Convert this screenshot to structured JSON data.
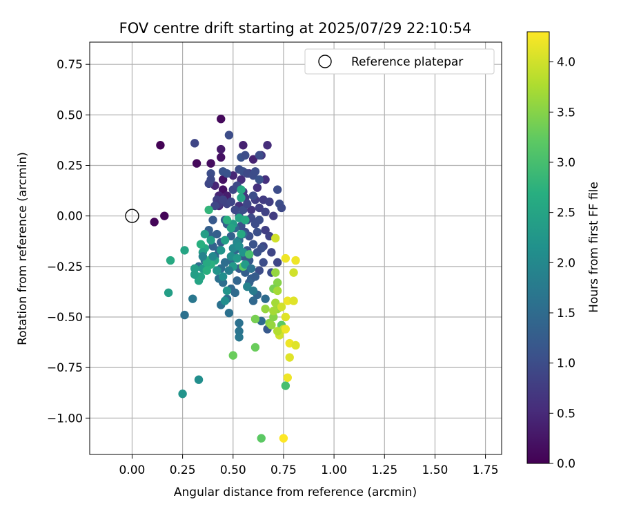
{
  "chart_data": {
    "type": "scatter",
    "title": "FOV centre drift starting at 2025/07/29 22:10:54",
    "xlabel": "Angular distance from reference (arcmin)",
    "ylabel": "Rotation from reference (arcmin)",
    "xlim": [
      -0.21,
      1.83
    ],
    "ylim": [
      -1.18,
      0.86
    ],
    "xticks": [
      "0.00",
      "0.25",
      "0.50",
      "0.75",
      "1.00",
      "1.25",
      "1.50",
      "1.75"
    ],
    "yticks": [
      "0.75",
      "0.50",
      "0.25",
      "0.00",
      "−0.25",
      "−0.50",
      "−0.75",
      "−1.00"
    ],
    "grid": true,
    "legend": {
      "position": "top-right",
      "label": "Reference platepar"
    },
    "reference_point": {
      "x": 0.0,
      "y": 0.0
    },
    "colorbar": {
      "label": "Hours from first FF file",
      "range": [
        0.0,
        4.3
      ],
      "ticks": [
        "0.0",
        "0.5",
        "1.0",
        "1.5",
        "2.0",
        "2.5",
        "3.0",
        "3.5",
        "4.0"
      ],
      "colormap": "viridis"
    },
    "points": [
      [
        0.14,
        0.35,
        0.02
      ],
      [
        0.11,
        -0.03,
        0.05
      ],
      [
        0.16,
        0.0,
        0.05
      ],
      [
        0.44,
        0.48,
        0.1
      ],
      [
        0.32,
        0.26,
        0.1
      ],
      [
        0.39,
        0.26,
        0.15
      ],
      [
        0.44,
        0.29,
        0.2
      ],
      [
        0.44,
        0.33,
        0.3
      ],
      [
        0.45,
        0.18,
        0.2
      ],
      [
        0.45,
        0.13,
        0.2
      ],
      [
        0.47,
        0.1,
        0.35
      ],
      [
        0.41,
        0.15,
        0.45
      ],
      [
        0.43,
        0.1,
        0.45
      ],
      [
        0.43,
        0.05,
        0.5
      ],
      [
        0.55,
        0.35,
        0.4
      ],
      [
        0.6,
        0.28,
        0.4
      ],
      [
        0.5,
        0.2,
        0.45
      ],
      [
        0.54,
        0.18,
        0.55
      ],
      [
        0.58,
        0.21,
        0.6
      ],
      [
        0.62,
        0.14,
        0.6
      ],
      [
        0.66,
        0.18,
        0.6
      ],
      [
        0.67,
        0.35,
        0.55
      ],
      [
        0.64,
        0.3,
        0.7
      ],
      [
        0.55,
        0.12,
        0.7
      ],
      [
        0.56,
        0.09,
        0.7
      ],
      [
        0.53,
        0.05,
        0.6
      ],
      [
        0.59,
        0.03,
        0.65
      ],
      [
        0.61,
        0.08,
        0.75
      ],
      [
        0.65,
        0.08,
        0.75
      ],
      [
        0.68,
        0.07,
        0.8
      ],
      [
        0.63,
        0.04,
        0.8
      ],
      [
        0.66,
        0.02,
        0.85
      ],
      [
        0.7,
        0.0,
        0.75
      ],
      [
        0.66,
        -0.07,
        0.8
      ],
      [
        0.68,
        -0.1,
        0.85
      ],
      [
        0.65,
        -0.15,
        0.9
      ],
      [
        0.69,
        -0.18,
        0.9
      ],
      [
        0.72,
        -0.23,
        0.9
      ],
      [
        0.65,
        -0.23,
        1.0
      ],
      [
        0.63,
        -0.27,
        1.0
      ],
      [
        0.69,
        -0.28,
        1.0
      ],
      [
        0.31,
        0.36,
        0.9
      ],
      [
        0.48,
        0.4,
        1.0
      ],
      [
        0.38,
        0.16,
        0.9
      ],
      [
        0.39,
        0.21,
        1.0
      ],
      [
        0.39,
        0.18,
        0.95
      ],
      [
        0.45,
        0.22,
        1.1
      ],
      [
        0.47,
        0.21,
        1.1
      ],
      [
        0.53,
        0.23,
        1.0
      ],
      [
        0.55,
        0.22,
        1.05
      ],
      [
        0.57,
        0.21,
        0.95
      ],
      [
        0.6,
        0.2,
        1.0
      ],
      [
        0.61,
        0.22,
        1.0
      ],
      [
        0.54,
        0.29,
        1.1
      ],
      [
        0.56,
        0.3,
        1.0
      ],
      [
        0.63,
        0.3,
        1.0
      ],
      [
        0.72,
        0.13,
        1.0
      ],
      [
        0.73,
        0.06,
        1.0
      ],
      [
        0.74,
        0.04,
        0.95
      ],
      [
        0.42,
        0.08,
        0.8
      ],
      [
        0.43,
        0.06,
        0.75
      ],
      [
        0.45,
        0.08,
        0.85
      ],
      [
        0.47,
        0.06,
        0.85
      ],
      [
        0.49,
        0.07,
        0.9
      ],
      [
        0.51,
        0.03,
        0.95
      ],
      [
        0.53,
        0.0,
        1.0
      ],
      [
        0.55,
        0.03,
        1.0
      ],
      [
        0.57,
        -0.02,
        1.0
      ],
      [
        0.59,
        -0.01,
        0.95
      ],
      [
        0.61,
        -0.04,
        1.0
      ],
      [
        0.63,
        -0.02,
        1.0
      ],
      [
        0.57,
        0.06,
        0.9
      ],
      [
        0.54,
        -0.05,
        1.05
      ],
      [
        0.56,
        -0.08,
        1.0
      ],
      [
        0.58,
        -0.1,
        1.05
      ],
      [
        0.62,
        -0.08,
        1.05
      ],
      [
        0.6,
        -0.14,
        1.1
      ],
      [
        0.62,
        -0.18,
        1.1
      ],
      [
        0.64,
        -0.16,
        1.05
      ],
      [
        0.57,
        -0.17,
        1.15
      ],
      [
        0.55,
        -0.2,
        1.2
      ],
      [
        0.58,
        -0.22,
        1.2
      ],
      [
        0.53,
        -0.26,
        1.25
      ],
      [
        0.56,
        -0.28,
        1.3
      ],
      [
        0.59,
        -0.31,
        1.3
      ],
      [
        0.61,
        -0.3,
        1.25
      ],
      [
        0.58,
        -0.33,
        1.35
      ],
      [
        0.62,
        -0.39,
        1.4
      ],
      [
        0.6,
        -0.42,
        1.45
      ],
      [
        0.52,
        -0.32,
        1.4
      ],
      [
        0.51,
        -0.38,
        1.5
      ],
      [
        0.49,
        -0.36,
        1.45
      ],
      [
        0.47,
        -0.41,
        1.55
      ],
      [
        0.44,
        -0.44,
        1.6
      ],
      [
        0.48,
        -0.48,
        1.6
      ],
      [
        0.45,
        -0.33,
        1.55
      ],
      [
        0.43,
        -0.31,
        1.6
      ],
      [
        0.44,
        -0.26,
        1.55
      ],
      [
        0.46,
        -0.23,
        1.55
      ],
      [
        0.49,
        -0.22,
        1.5
      ],
      [
        0.51,
        -0.17,
        1.45
      ],
      [
        0.53,
        -0.12,
        1.5
      ],
      [
        0.55,
        -0.09,
        1.45
      ],
      [
        0.51,
        -0.06,
        1.4
      ],
      [
        0.49,
        -0.1,
        1.35
      ],
      [
        0.47,
        -0.04,
        1.3
      ],
      [
        0.46,
        -0.02,
        1.35
      ],
      [
        0.44,
        -0.13,
        1.25
      ],
      [
        0.43,
        -0.17,
        1.4
      ],
      [
        0.41,
        -0.2,
        1.45
      ],
      [
        0.38,
        -0.07,
        1.3
      ],
      [
        0.39,
        -0.1,
        1.3
      ],
      [
        0.4,
        -0.15,
        1.35
      ],
      [
        0.36,
        -0.22,
        1.5
      ],
      [
        0.33,
        -0.25,
        1.55
      ],
      [
        0.31,
        -0.29,
        1.65
      ],
      [
        0.3,
        -0.41,
        1.7
      ],
      [
        0.26,
        -0.49,
        1.6
      ],
      [
        0.53,
        -0.53,
        1.6
      ],
      [
        0.53,
        -0.57,
        1.65
      ],
      [
        0.53,
        -0.6,
        1.7
      ],
      [
        0.64,
        -0.52,
        1.5
      ],
      [
        0.67,
        -0.56,
        1.2
      ],
      [
        0.5,
        0.13,
        0.9
      ],
      [
        0.52,
        0.15,
        0.95
      ],
      [
        0.4,
        -0.02,
        1.2
      ],
      [
        0.6,
        0.1,
        1.0
      ],
      [
        0.63,
        0.18,
        1.1
      ],
      [
        0.41,
        0.05,
        0.9
      ],
      [
        0.52,
        -0.13,
        2.0
      ],
      [
        0.5,
        -0.16,
        2.0
      ],
      [
        0.53,
        -0.15,
        2.1
      ],
      [
        0.49,
        -0.2,
        2.1
      ],
      [
        0.55,
        -0.18,
        2.2
      ],
      [
        0.52,
        -0.21,
        2.3
      ],
      [
        0.5,
        -0.25,
        2.3
      ],
      [
        0.54,
        -0.09,
        2.6
      ],
      [
        0.5,
        -0.04,
        2.4
      ],
      [
        0.53,
        -0.01,
        2.5
      ],
      [
        0.56,
        -0.02,
        2.6
      ],
      [
        0.54,
        0.09,
        2.5
      ],
      [
        0.54,
        0.13,
        2.6
      ],
      [
        0.47,
        -0.02,
        2.7
      ],
      [
        0.49,
        -0.06,
        2.5
      ],
      [
        0.46,
        -0.12,
        2.4
      ],
      [
        0.44,
        -0.17,
        2.2
      ],
      [
        0.41,
        -0.22,
        2.5
      ],
      [
        0.38,
        -0.22,
        2.8
      ],
      [
        0.39,
        -0.24,
        2.7
      ],
      [
        0.36,
        -0.16,
        2.6
      ],
      [
        0.34,
        -0.14,
        2.7
      ],
      [
        0.35,
        -0.18,
        2.4
      ],
      [
        0.35,
        -0.26,
        2.3
      ],
      [
        0.34,
        -0.3,
        2.5
      ],
      [
        0.33,
        -0.32,
        2.5
      ],
      [
        0.36,
        -0.09,
        2.4
      ],
      [
        0.38,
        0.03,
        2.8
      ],
      [
        0.39,
        -0.12,
        2.4
      ],
      [
        0.4,
        -0.2,
        2.0
      ],
      [
        0.42,
        -0.27,
        2.2
      ],
      [
        0.45,
        -0.3,
        2.1
      ],
      [
        0.47,
        -0.37,
        2.2
      ],
      [
        0.46,
        -0.42,
        2.1
      ],
      [
        0.37,
        -0.23,
        2.6
      ],
      [
        0.37,
        -0.27,
        2.7
      ],
      [
        0.31,
        -0.26,
        2.4
      ],
      [
        0.18,
        -0.38,
        2.4
      ],
      [
        0.19,
        -0.22,
        2.6
      ],
      [
        0.26,
        -0.17,
        2.5
      ],
      [
        0.33,
        -0.81,
        2.1
      ],
      [
        0.25,
        -0.88,
        2.2
      ],
      [
        0.31,
        -0.29,
        2.4
      ],
      [
        0.55,
        -0.25,
        3.2
      ],
      [
        0.58,
        -0.19,
        3.0
      ],
      [
        0.5,
        -0.69,
        3.3
      ],
      [
        0.61,
        -0.51,
        3.4
      ],
      [
        0.61,
        -0.65,
        3.3
      ],
      [
        0.64,
        -1.1,
        3.2
      ],
      [
        0.66,
        -0.46,
        3.6
      ],
      [
        0.7,
        -0.5,
        3.5
      ],
      [
        0.72,
        -0.46,
        3.6
      ],
      [
        0.68,
        -0.53,
        3.5
      ],
      [
        0.74,
        -0.54,
        3.2
      ],
      [
        0.76,
        -0.84,
        3.0
      ],
      [
        0.71,
        -0.28,
        3.6
      ],
      [
        0.72,
        -0.33,
        3.5
      ],
      [
        0.7,
        -0.36,
        3.4
      ],
      [
        0.72,
        -0.37,
        3.7
      ],
      [
        0.71,
        -0.11,
        4.0
      ],
      [
        0.71,
        -0.43,
        3.7
      ],
      [
        0.75,
        -0.56,
        3.9
      ],
      [
        0.73,
        -0.59,
        4.0
      ],
      [
        0.76,
        -0.5,
        4.1
      ],
      [
        0.76,
        -0.56,
        4.2
      ],
      [
        0.77,
        -0.42,
        4.2
      ],
      [
        0.8,
        -0.42,
        4.1
      ],
      [
        0.78,
        -0.63,
        4.2
      ],
      [
        0.81,
        -0.64,
        4.1
      ],
      [
        0.78,
        -0.7,
        4.1
      ],
      [
        0.77,
        -0.8,
        4.2
      ],
      [
        0.75,
        -1.1,
        4.3
      ],
      [
        0.76,
        -0.21,
        4.2
      ],
      [
        0.81,
        -0.22,
        4.2
      ],
      [
        0.8,
        -0.28,
        4.0
      ],
      [
        0.72,
        -0.57,
        3.8
      ],
      [
        0.7,
        -0.47,
        3.7
      ],
      [
        0.69,
        -0.54,
        3.6
      ],
      [
        0.74,
        -0.45,
        4.0
      ],
      [
        0.57,
        -0.35,
        1.9
      ],
      [
        0.6,
        -0.37,
        1.75
      ],
      [
        0.56,
        -0.24,
        2.35
      ],
      [
        0.59,
        -0.26,
        1.6
      ],
      [
        0.42,
        -0.09,
        1.3
      ],
      [
        0.48,
        -0.27,
        1.8
      ],
      [
        0.35,
        -0.2,
        1.9
      ],
      [
        0.66,
        -0.41,
        1.5
      ]
    ]
  }
}
